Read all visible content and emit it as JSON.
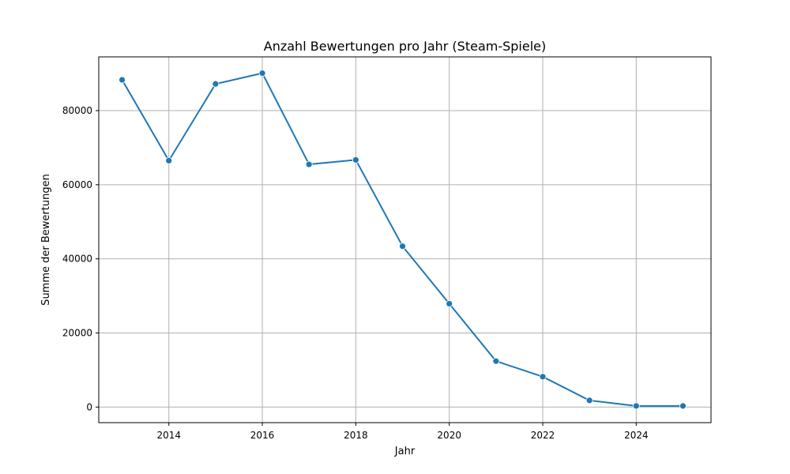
{
  "chart_data": {
    "type": "line",
    "title": "Anzahl Bewertungen pro Jahr (Steam-Spiele)",
    "xlabel": "Jahr",
    "ylabel": "Summe der Bewertungen",
    "x": [
      2013,
      2014,
      2015,
      2016,
      2017,
      2018,
      2019,
      2020,
      2021,
      2022,
      2023,
      2024,
      2025
    ],
    "series": [
      {
        "values": [
          88300,
          66500,
          87200,
          90100,
          65500,
          66700,
          43400,
          27900,
          12400,
          8200,
          1800,
          300,
          300
        ]
      }
    ],
    "xlim": [
      2012.5,
      2025.6
    ],
    "ylim": [
      -4200,
      94500
    ],
    "xticks": [
      2014,
      2016,
      2018,
      2020,
      2022,
      2024
    ],
    "yticks": [
      0,
      20000,
      40000,
      60000,
      80000
    ],
    "grid": true,
    "markers": true,
    "color": "#1f77b4"
  }
}
